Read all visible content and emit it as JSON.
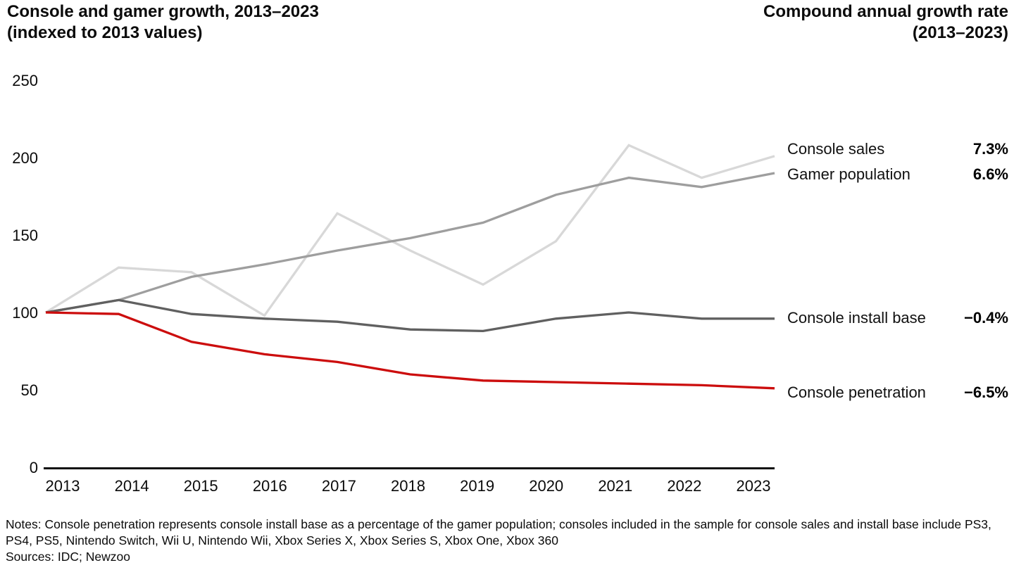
{
  "header": {
    "title": {
      "line1": "Console and gamer growth, 2013–2023",
      "line2": "(indexed to 2013 values)"
    },
    "right_title": {
      "line1": "Compound annual growth rate",
      "line2": "(2013–2023)"
    }
  },
  "chart_data": {
    "type": "line",
    "title": "Console and gamer growth, 2013–2023 (indexed to 2013 values)",
    "x": [
      2013,
      2014,
      2015,
      2016,
      2017,
      2018,
      2019,
      2020,
      2021,
      2022,
      2023
    ],
    "xlabel": "",
    "ylabel": "",
    "ylim": [
      0,
      250
    ],
    "y_ticks": [
      0,
      50,
      100,
      150,
      200,
      250
    ],
    "grid": false,
    "legend_position": "right-of-line-ends",
    "axis_color": "#111111",
    "series": [
      {
        "name": "Console sales",
        "cagr": "7.3%",
        "color": "#d8d8d8",
        "values": [
          100,
          129,
          126,
          98,
          164,
          140,
          118,
          146,
          208,
          187,
          201
        ]
      },
      {
        "name": "Gamer population",
        "cagr": "6.6%",
        "color": "#9e9e9e",
        "values": [
          100,
          108,
          123,
          131,
          140,
          148,
          158,
          176,
          187,
          181,
          190
        ]
      },
      {
        "name": "Console install base",
        "cagr": "−0.4%",
        "color": "#606060",
        "values": [
          100,
          108,
          99,
          96,
          94,
          89,
          88,
          96,
          100,
          96,
          96
        ]
      },
      {
        "name": "Console penetration",
        "cagr": "−6.5%",
        "color": "#cc0d0d",
        "values": [
          100,
          99,
          81,
          73,
          68,
          60,
          56,
          55,
          54,
          53,
          51
        ]
      }
    ]
  },
  "footer": {
    "notes": "Notes: Console penetration represents console install base as a percentage of the gamer population; consoles included in the sample for console sales and install base include PS3, PS4, PS5, Nintendo Switch, Wii U, Nintendo Wii, Xbox Series X, Xbox Series S, Xbox One, Xbox 360",
    "sources": "Sources: IDC; Newzoo"
  }
}
